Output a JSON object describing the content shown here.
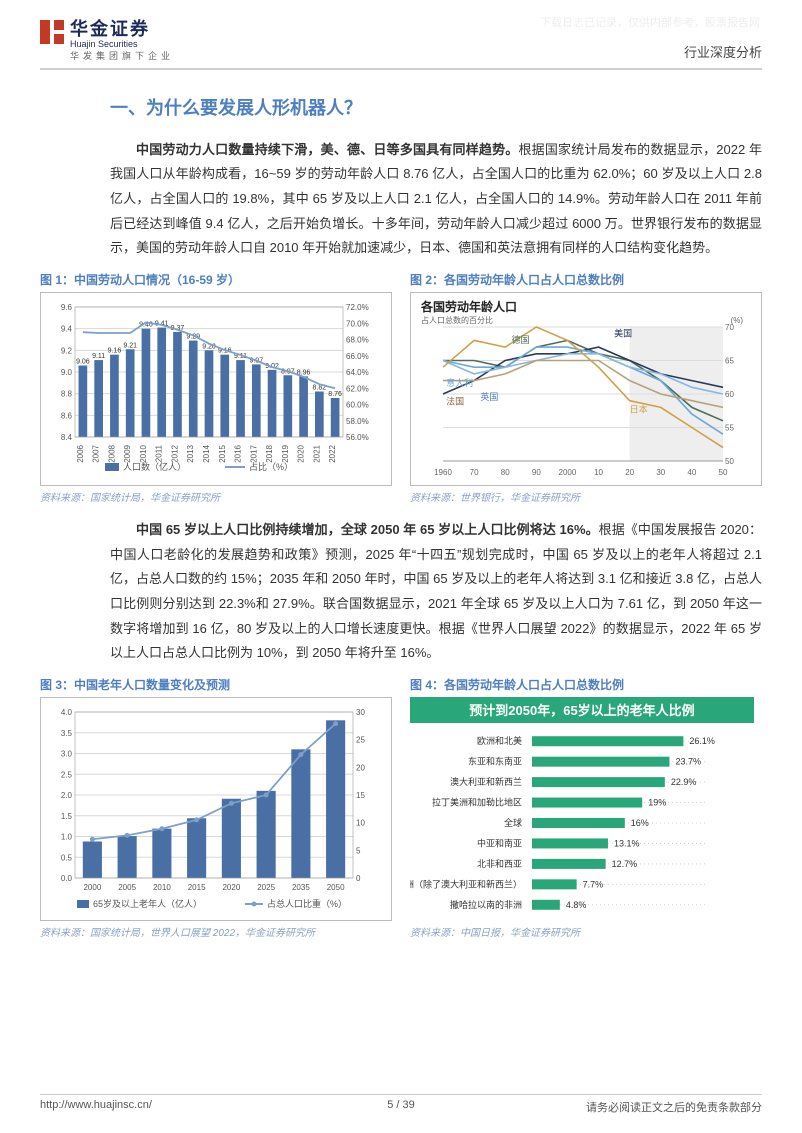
{
  "watermark": "下载日志已记录，仅供内部参考，股票报告网",
  "header": {
    "logo_cn": "华金证券",
    "logo_en": "Huajin Securities",
    "logo_sub": "华发集团旗下企业",
    "right": "行业深度分析"
  },
  "section_title": "一、为什么要发展人形机器人？",
  "para1_lead": "中国劳动力人口数量持续下滑，美、德、日等多国具有同样趋势。",
  "para1_rest": "根据国家统计局发布的数据显示，2022 年我国人口从年龄构成看，16~59 岁的劳动年龄人口 8.76 亿人，占全国人口的比重为 62.0%；60 岁及以上人口 2.8 亿人，占全国人口的 19.8%，其中 65 岁及以上人口 2.1 亿人，占全国人口的 14.9%。劳动年龄人口在 2011 年前后已经达到峰值 9.4 亿人，之后开始负增长。十多年间，劳动年龄人口减少超过 6000 万。世界银行发布的数据显示，美国的劳动年龄人口自 2010 年开始就加速减少，日本、德国和英法意拥有同样的人口结构变化趋势。",
  "para2_lead": "中国 65 岁以上人口比例持续增加，全球 2050 年 65 岁以上人口比例将达 16%。",
  "para2_rest": "根据《中国发展报告 2020：中国人口老龄化的发展趋势和政策》预测，2025 年“十四五”规划完成时，中国 65 岁及以上的老年人将超过 2.1 亿，占总人口数的约 15%；2035 年和 2050 年时，中国 65 岁及以上的老年人将达到 3.1 亿和接近 3.8 亿，占总人口比例则分别达到 22.3%和 27.9%。联合国数据显示，2021 年全球 65 岁及以上人口为 7.61 亿，到 2050 年这一数字将增加到 16 亿，80 岁及以上的人口增长速度更快。根据《世界人口展望 2022》的数据显示，2022 年 65 岁以上人口占总人口比例为 10%，到 2050 年将升至 16%。",
  "fig1": {
    "title": "图 1：中国劳动人口情况（16-59 岁）",
    "source": "资料来源：国家统计局，华金证券研究所",
    "years": [
      "2006",
      "2007",
      "2008",
      "2009",
      "2010",
      "2011",
      "2012",
      "2013",
      "2014",
      "2015",
      "2016",
      "2017",
      "2018",
      "2019",
      "2020",
      "2021",
      "2022"
    ],
    "bar_values": [
      9.06,
      9.11,
      9.16,
      9.21,
      9.4,
      9.41,
      9.37,
      9.29,
      9.2,
      9.16,
      9.11,
      9.07,
      9.02,
      8.97,
      8.96,
      8.82,
      8.76
    ],
    "line_values": [
      68.9,
      68.8,
      68.8,
      68.8,
      70.1,
      69.8,
      69.2,
      68.5,
      67.5,
      66.7,
      66.1,
      65.4,
      64.6,
      64.1,
      63.4,
      62.5,
      62.0
    ],
    "bar_ymin": 8.4,
    "bar_ymax": 9.6,
    "bar_ystep": 0.2,
    "line_ymin": 56.0,
    "line_ymax": 72.0,
    "line_ystep": 2.0,
    "bar_color": "#4a6fa5",
    "line_color": "#7da0c9",
    "grid_color": "#d8d8d8",
    "legend_bar": "人口数（亿人）",
    "legend_line": "占比（%）",
    "axis_font_size": 8,
    "label_font_size": 9
  },
  "fig2": {
    "title": "图 2：各国劳动年龄人口占人口总数比例",
    "source": "资料来源：世界银行，华金证券研究所",
    "inner_title": "各国劳动年龄人口",
    "inner_sub": "占人口总数的百分比",
    "y_unit": "(%)",
    "x_ticks": [
      "1960",
      "70",
      "80",
      "90",
      "2000",
      "10",
      "20",
      "30",
      "40",
      "50"
    ],
    "y_min": 50,
    "y_max": 70,
    "y_step": 5,
    "grid_color": "#dddddd",
    "shade_color": "#eeeeee",
    "shade_from_x": 6.0,
    "series": {
      "germany": {
        "label": "德国",
        "color": "#4d6d58",
        "label_color": "#4d6d58",
        "values": [
          65,
          65,
          64,
          67,
          68,
          66,
          65,
          62,
          58,
          56
        ]
      },
      "usa": {
        "label": "美国",
        "color": "#2a3a5a",
        "label_color": "#2a3a5a",
        "values": [
          60,
          62,
          65,
          66,
          66,
          67,
          65,
          63,
          62,
          61
        ]
      },
      "italy": {
        "label": "意大利",
        "color": "#6aa9d8",
        "label_color": "#6aa9d8",
        "values": [
          65,
          64,
          64,
          67,
          67,
          66,
          64,
          62,
          57,
          54
        ]
      },
      "uk": {
        "label": "英国",
        "color": "#86b6e2",
        "label_color": "#4f7fbf",
        "values": [
          65,
          63,
          64,
          65,
          66,
          66,
          64,
          63,
          61,
          60
        ]
      },
      "japan": {
        "label": "日本",
        "color": "#cfa04a",
        "label_color": "#cfa04a",
        "values": [
          64,
          68,
          67,
          70,
          68,
          64,
          59,
          58,
          55,
          52
        ]
      },
      "france": {
        "label": "法国",
        "color": "#b7a07a",
        "label_color": "#8a6a4a",
        "values": [
          62,
          62,
          63,
          65,
          65,
          65,
          62,
          60,
          59,
          58
        ]
      }
    }
  },
  "fig3": {
    "title": "图 3：中国老年人口数量变化及预测",
    "source": "资料来源：国家统计局，世界人口展望 2022，华金证券研究所",
    "years": [
      "2000",
      "2005",
      "2010",
      "2015",
      "2020",
      "2025",
      "2035",
      "2050"
    ],
    "bar_values": [
      0.88,
      1.01,
      1.19,
      1.44,
      1.91,
      2.1,
      3.1,
      3.8
    ],
    "line_values": [
      7.0,
      7.7,
      8.9,
      10.5,
      13.5,
      15.0,
      22.3,
      27.9
    ],
    "bar_ymin": 0.0,
    "bar_ymax": 4.0,
    "bar_ystep": 0.5,
    "line_ymin": 0,
    "line_ymax": 30,
    "line_ystep": 5,
    "bar_color": "#4a6fa5",
    "line_color": "#7da0c9",
    "grid_color": "#d8d8d8",
    "legend_bar": "65岁及以上老年人（亿人）",
    "legend_line": "占总人口比重（%）"
  },
  "fig4": {
    "title": "图 4：各国劳动年龄人口占人口总数比例",
    "source": "资料来源：中国日报，华金证券研究所",
    "banner": "预计到2050年，65岁以上的老年人比例",
    "banner_bg": "#2aa77a",
    "bar_color": "#2aa77a",
    "text_color": "#333333",
    "dot_color": "#cfd3d0",
    "label_font_size": 9,
    "value_font_size": 9,
    "max_pct": 30,
    "rows": [
      {
        "label": "欧洲和北美",
        "value": 26.1,
        "display": "26.1%"
      },
      {
        "label": "东亚和东南亚",
        "value": 23.7,
        "display": "23.7%"
      },
      {
        "label": "澳大利亚和新西兰",
        "value": 22.9,
        "display": "22.9%"
      },
      {
        "label": "拉丁美洲和加勒比地区",
        "value": 19.0,
        "display": "19%"
      },
      {
        "label": "全球",
        "value": 16.0,
        "display": "16%"
      },
      {
        "label": "中亚和南亚",
        "value": 13.1,
        "display": "13.1%"
      },
      {
        "label": "北非和西亚",
        "value": 12.7,
        "display": "12.7%"
      },
      {
        "label": "大洋洲（除了澳大利亚和新西兰）",
        "value": 7.7,
        "display": "7.7%"
      },
      {
        "label": "撒哈拉以南的非洲",
        "value": 4.8,
        "display": "4.8%"
      }
    ]
  },
  "footer": {
    "left": "http://www.huajinsc.cn/",
    "center": "5 / 39",
    "right": "请务必阅读正文之后的免责条款部分"
  }
}
